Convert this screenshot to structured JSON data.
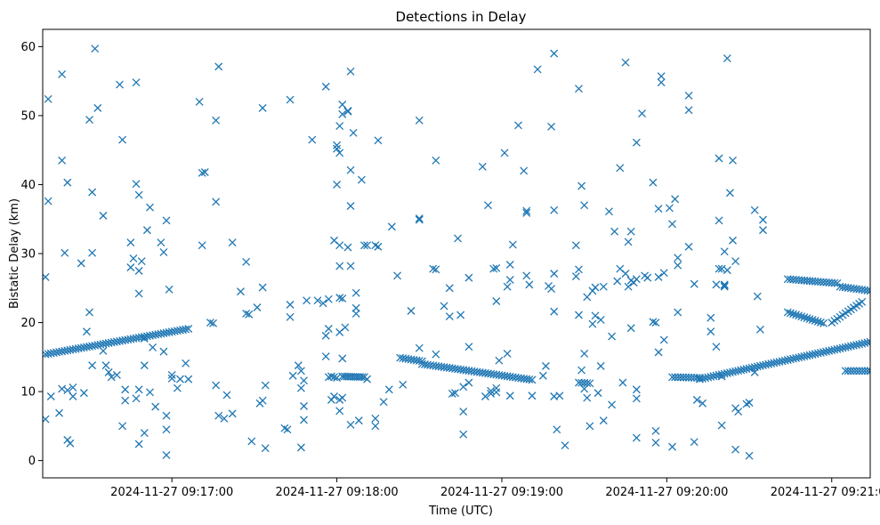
{
  "chart_data": {
    "type": "scatter",
    "title": "Detections in Delay",
    "xlabel": "Time (UTC)",
    "ylabel": "Bistatic Delay (km)",
    "marker": "x",
    "color": "#1f77b4",
    "grid": false,
    "x_unit": "seconds after 2024-11-27 09:16:00 UTC",
    "xlim": [
      13,
      314
    ],
    "ylim": [
      -2.5,
      62.5
    ],
    "x_ticks": [
      {
        "value": 60,
        "label": "2024-11-27 09:17:00"
      },
      {
        "value": 120,
        "label": "2024-11-27 09:18:00"
      },
      {
        "value": 180,
        "label": "2024-11-27 09:19:00"
      },
      {
        "value": 240,
        "label": "2024-11-27 09:20:00"
      },
      {
        "value": 300,
        "label": "2024-11-27 09:21:00"
      }
    ],
    "y_ticks": [
      {
        "value": 0,
        "label": "0"
      },
      {
        "value": 10,
        "label": "10"
      },
      {
        "value": 20,
        "label": "20"
      },
      {
        "value": 30,
        "label": "30"
      },
      {
        "value": 40,
        "label": "40"
      },
      {
        "value": 50,
        "label": "50"
      },
      {
        "value": 60,
        "label": "60"
      }
    ],
    "tracks": [
      {
        "x_start": 14,
        "x_end": 66,
        "y_start": 15.4,
        "y_end": 19.1,
        "step": 1.0
      },
      {
        "x_start": 122,
        "x_end": 130,
        "y_start": 12.2,
        "y_end": 12.1,
        "step": 0.8
      },
      {
        "x_start": 143,
        "x_end": 151,
        "y_start": 14.9,
        "y_end": 14.4,
        "step": 1.0
      },
      {
        "x_start": 151,
        "x_end": 191,
        "y_start": 14.0,
        "y_end": 11.7,
        "step": 1.0
      },
      {
        "x_start": 208,
        "x_end": 212,
        "y_start": 11.3,
        "y_end": 11.2,
        "step": 1.0
      },
      {
        "x_start": 242,
        "x_end": 252,
        "y_start": 12.1,
        "y_end": 12.0,
        "step": 1.0
      },
      {
        "x_start": 252,
        "x_end": 314,
        "y_start": 11.8,
        "y_end": 17.2,
        "step": 1.0
      },
      {
        "x_start": 284,
        "x_end": 302,
        "y_start": 26.3,
        "y_end": 25.7,
        "step": 1.0
      },
      {
        "x_start": 284,
        "x_end": 297,
        "y_start": 21.5,
        "y_end": 19.9,
        "step": 1.0
      },
      {
        "x_start": 300,
        "x_end": 311,
        "y_start": 20.0,
        "y_end": 23.0,
        "step": 1.0
      },
      {
        "x_start": 303,
        "x_end": 314,
        "y_start": 25.2,
        "y_end": 24.6,
        "step": 1.0
      },
      {
        "x_start": 305,
        "x_end": 314,
        "y_start": 13.0,
        "y_end": 13.0,
        "step": 1.0
      }
    ],
    "points": [
      [
        14,
        26.6
      ],
      [
        15,
        37.6
      ],
      [
        15,
        52.4
      ],
      [
        14,
        6.0
      ],
      [
        16,
        9.3
      ],
      [
        20,
        56.0
      ],
      [
        20,
        43.5
      ],
      [
        21,
        30.1
      ],
      [
        22,
        40.3
      ],
      [
        20,
        10.4
      ],
      [
        19,
        6.9
      ],
      [
        22,
        10.2
      ],
      [
        24,
        10.6
      ],
      [
        22,
        3.0
      ],
      [
        23,
        2.5
      ],
      [
        24,
        9.3
      ],
      [
        27,
        28.6
      ],
      [
        28,
        9.8
      ],
      [
        29,
        18.7
      ],
      [
        30,
        21.5
      ],
      [
        30,
        49.4
      ],
      [
        31,
        38.9
      ],
      [
        32,
        59.7
      ],
      [
        33,
        51.1
      ],
      [
        31,
        13.8
      ],
      [
        31,
        30.1
      ],
      [
        35,
        35.5
      ],
      [
        35,
        15.9
      ],
      [
        36,
        13.8
      ],
      [
        37,
        12.8
      ],
      [
        38,
        12.1
      ],
      [
        40,
        12.4
      ],
      [
        41,
        54.5
      ],
      [
        42,
        46.5
      ],
      [
        42,
        5.0
      ],
      [
        43,
        10.3
      ],
      [
        43,
        8.7
      ],
      [
        45,
        28.0
      ],
      [
        45,
        31.6
      ],
      [
        46,
        29.3
      ],
      [
        47,
        54.8
      ],
      [
        47,
        40.1
      ],
      [
        48,
        38.5
      ],
      [
        48,
        27.5
      ],
      [
        48,
        24.2
      ],
      [
        49,
        28.9
      ],
      [
        47,
        9.0
      ],
      [
        48,
        10.3
      ],
      [
        48,
        2.4
      ],
      [
        50,
        4.0
      ],
      [
        50,
        13.8
      ],
      [
        50,
        17.7
      ],
      [
        51,
        33.4
      ],
      [
        52,
        36.7
      ],
      [
        52,
        9.9
      ],
      [
        53,
        16.4
      ],
      [
        54,
        7.8
      ],
      [
        56,
        31.6
      ],
      [
        57,
        30.2
      ],
      [
        57,
        15.8
      ],
      [
        58,
        34.8
      ],
      [
        59,
        24.8
      ],
      [
        58,
        6.5
      ],
      [
        58,
        4.5
      ],
      [
        58,
        0.8
      ],
      [
        60,
        12.4
      ],
      [
        60,
        11.9
      ],
      [
        62,
        10.5
      ],
      [
        63,
        11.8
      ],
      [
        65,
        14.1
      ],
      [
        66,
        11.8
      ],
      [
        70,
        52.0
      ],
      [
        71,
        41.7
      ],
      [
        71,
        31.2
      ],
      [
        72,
        41.8
      ],
      [
        74,
        20.0
      ],
      [
        75,
        19.9
      ],
      [
        76,
        37.5
      ],
      [
        76,
        49.3
      ],
      [
        77,
        57.1
      ],
      [
        76,
        10.9
      ],
      [
        77,
        6.5
      ],
      [
        79,
        6.1
      ],
      [
        80,
        9.5
      ],
      [
        82,
        6.8
      ],
      [
        82,
        31.6
      ],
      [
        85,
        24.5
      ],
      [
        87,
        28.8
      ],
      [
        87,
        21.3
      ],
      [
        88,
        21.2
      ],
      [
        89,
        2.8
      ],
      [
        91,
        22.2
      ],
      [
        92,
        8.3
      ],
      [
        93,
        8.7
      ],
      [
        93,
        25.1
      ],
      [
        93,
        51.1
      ],
      [
        94,
        10.9
      ],
      [
        94,
        1.8
      ],
      [
        101,
        4.7
      ],
      [
        102,
        4.5
      ],
      [
        103,
        52.3
      ],
      [
        103,
        22.6
      ],
      [
        103,
        20.8
      ],
      [
        104,
        12.3
      ],
      [
        106,
        13.8
      ],
      [
        107,
        13.0
      ],
      [
        107,
        10.5
      ],
      [
        107,
        1.9
      ],
      [
        108,
        5.9
      ],
      [
        108,
        7.9
      ],
      [
        108,
        11.6
      ],
      [
        109,
        23.2
      ],
      [
        111,
        46.5
      ],
      [
        113,
        23.2
      ],
      [
        115,
        22.8
      ],
      [
        116,
        54.2
      ],
      [
        116,
        18.1
      ],
      [
        116,
        15.1
      ],
      [
        117,
        23.4
      ],
      [
        117,
        19.1
      ],
      [
        117,
        12.1
      ],
      [
        118,
        12.2
      ],
      [
        118,
        8.8
      ],
      [
        119,
        12.1
      ],
      [
        119,
        9.3
      ],
      [
        120,
        45.2
      ],
      [
        120,
        45.7
      ],
      [
        120,
        12.0
      ],
      [
        119,
        31.9
      ],
      [
        120,
        40.0
      ],
      [
        121,
        44.6
      ],
      [
        121,
        48.5
      ],
      [
        121,
        28.2
      ],
      [
        121,
        31.2
      ],
      [
        121,
        23.6
      ],
      [
        121,
        8.8
      ],
      [
        121,
        18.6
      ],
      [
        121,
        7.2
      ],
      [
        122,
        51.6
      ],
      [
        122,
        50.2
      ],
      [
        122,
        23.5
      ],
      [
        122,
        9.1
      ],
      [
        122,
        14.8
      ],
      [
        123,
        19.3
      ],
      [
        124,
        50.7
      ],
      [
        124,
        50.6
      ],
      [
        124,
        30.9
      ],
      [
        125,
        28.2
      ],
      [
        125,
        5.2
      ],
      [
        125,
        56.4
      ],
      [
        125,
        42.1
      ],
      [
        125,
        36.9
      ],
      [
        126,
        47.5
      ],
      [
        127,
        24.3
      ],
      [
        127,
        22.1
      ],
      [
        127,
        21.3
      ],
      [
        128,
        5.8
      ],
      [
        129,
        40.7
      ],
      [
        130,
        31.2
      ],
      [
        131,
        31.2
      ],
      [
        131,
        11.8
      ],
      [
        134,
        31.2
      ],
      [
        135,
        31.0
      ],
      [
        134,
        5.0
      ],
      [
        134,
        6.1
      ],
      [
        135,
        46.4
      ],
      [
        137,
        8.5
      ],
      [
        139,
        10.3
      ],
      [
        140,
        33.9
      ],
      [
        142,
        26.8
      ],
      [
        144,
        11.0
      ],
      [
        147,
        21.7
      ],
      [
        150,
        35.1
      ],
      [
        150,
        34.9
      ],
      [
        150,
        49.3
      ],
      [
        150,
        16.3
      ],
      [
        155,
        27.8
      ],
      [
        156,
        27.7
      ],
      [
        156,
        43.5
      ],
      [
        156,
        15.4
      ],
      [
        159,
        22.4
      ],
      [
        161,
        20.9
      ],
      [
        161,
        25.0
      ],
      [
        162,
        9.7
      ],
      [
        163,
        9.8
      ],
      [
        164,
        32.2
      ],
      [
        165,
        21.1
      ],
      [
        166,
        7.1
      ],
      [
        166,
        3.8
      ],
      [
        166,
        10.7
      ],
      [
        168,
        26.5
      ],
      [
        168,
        16.5
      ],
      [
        168,
        11.3
      ],
      [
        173,
        42.6
      ],
      [
        174,
        9.3
      ],
      [
        175,
        37.0
      ],
      [
        176,
        9.7
      ],
      [
        176,
        10.1
      ],
      [
        177,
        27.8
      ],
      [
        178,
        23.1
      ],
      [
        178,
        27.9
      ],
      [
        178,
        10.5
      ],
      [
        178,
        9.9
      ],
      [
        179,
        14.5
      ],
      [
        181,
        44.6
      ],
      [
        182,
        25.2
      ],
      [
        183,
        28.4
      ],
      [
        182,
        15.5
      ],
      [
        183,
        26.2
      ],
      [
        183,
        9.4
      ],
      [
        184,
        31.3
      ],
      [
        186,
        48.6
      ],
      [
        188,
        42.0
      ],
      [
        189,
        36.2
      ],
      [
        189,
        35.9
      ],
      [
        189,
        26.8
      ],
      [
        190,
        25.5
      ],
      [
        191,
        9.4
      ],
      [
        193,
        56.7
      ],
      [
        195,
        12.3
      ],
      [
        196,
        13.7
      ],
      [
        197,
        25.3
      ],
      [
        198,
        48.4
      ],
      [
        198,
        24.9
      ],
      [
        199,
        59.0
      ],
      [
        199,
        36.3
      ],
      [
        199,
        27.1
      ],
      [
        199,
        21.6
      ],
      [
        199,
        9.3
      ],
      [
        200,
        4.5
      ],
      [
        201,
        9.4
      ],
      [
        203,
        2.2
      ],
      [
        207,
        31.2
      ],
      [
        207,
        26.7
      ],
      [
        208,
        27.7
      ],
      [
        208,
        53.9
      ],
      [
        209,
        39.8
      ],
      [
        210,
        37.0
      ],
      [
        208,
        21.1
      ],
      [
        209,
        13.1
      ],
      [
        210,
        15.5
      ],
      [
        210,
        10.4
      ],
      [
        211,
        23.7
      ],
      [
        211,
        9.1
      ],
      [
        212,
        5.0
      ],
      [
        213,
        24.6
      ],
      [
        214,
        21.0
      ],
      [
        213,
        19.8
      ],
      [
        214,
        25.1
      ],
      [
        215,
        9.8
      ],
      [
        216,
        20.4
      ],
      [
        216,
        13.7
      ],
      [
        217,
        25.2
      ],
      [
        217,
        5.8
      ],
      [
        219,
        36.1
      ],
      [
        220,
        18.0
      ],
      [
        220,
        8.1
      ],
      [
        221,
        33.2
      ],
      [
        222,
        26.0
      ],
      [
        223,
        27.8
      ],
      [
        223,
        42.4
      ],
      [
        224,
        11.3
      ],
      [
        225,
        57.7
      ],
      [
        225,
        27.1
      ],
      [
        226,
        25.2
      ],
      [
        226,
        31.7
      ],
      [
        227,
        26.1
      ],
      [
        227,
        33.2
      ],
      [
        227,
        19.2
      ],
      [
        228,
        25.8
      ],
      [
        229,
        46.1
      ],
      [
        229,
        26.3
      ],
      [
        229,
        10.3
      ],
      [
        229,
        9.0
      ],
      [
        229,
        3.3
      ],
      [
        231,
        50.3
      ],
      [
        232,
        26.8
      ],
      [
        233,
        26.5
      ],
      [
        235,
        20.1
      ],
      [
        235,
        40.3
      ],
      [
        236,
        4.3
      ],
      [
        236,
        2.6
      ],
      [
        236,
        20.0
      ],
      [
        237,
        36.5
      ],
      [
        237,
        15.7
      ],
      [
        237,
        26.6
      ],
      [
        238,
        55.7
      ],
      [
        238,
        54.8
      ],
      [
        239,
        17.5
      ],
      [
        239,
        27.2
      ],
      [
        241,
        36.6
      ],
      [
        242,
        34.3
      ],
      [
        243,
        37.9
      ],
      [
        242,
        2.0
      ],
      [
        244,
        28.3
      ],
      [
        244,
        21.5
      ],
      [
        244,
        29.4
      ],
      [
        248,
        50.8
      ],
      [
        248,
        52.9
      ],
      [
        248,
        31.0
      ],
      [
        250,
        2.7
      ],
      [
        250,
        25.6
      ],
      [
        251,
        8.8
      ],
      [
        253,
        8.3
      ],
      [
        256,
        18.7
      ],
      [
        256,
        20.7
      ],
      [
        258,
        25.5
      ],
      [
        258,
        16.5
      ],
      [
        259,
        27.8
      ],
      [
        259,
        43.8
      ],
      [
        259,
        34.8
      ],
      [
        260,
        27.8
      ],
      [
        260,
        5.1
      ],
      [
        260,
        12.2
      ],
      [
        261,
        25.4
      ],
      [
        261,
        25.2
      ],
      [
        261,
        25.5
      ],
      [
        261,
        30.3
      ],
      [
        262,
        27.6
      ],
      [
        262,
        58.3
      ],
      [
        263,
        38.8
      ],
      [
        264,
        43.5
      ],
      [
        264,
        31.9
      ],
      [
        265,
        28.9
      ],
      [
        265,
        7.6
      ],
      [
        265,
        1.6
      ],
      [
        266,
        7.1
      ],
      [
        269,
        8.2
      ],
      [
        270,
        8.4
      ],
      [
        270,
        0.7
      ],
      [
        272,
        36.3
      ],
      [
        272,
        12.8
      ],
      [
        273,
        23.8
      ],
      [
        274,
        19.0
      ],
      [
        275,
        33.4
      ],
      [
        275,
        34.9
      ]
    ]
  }
}
